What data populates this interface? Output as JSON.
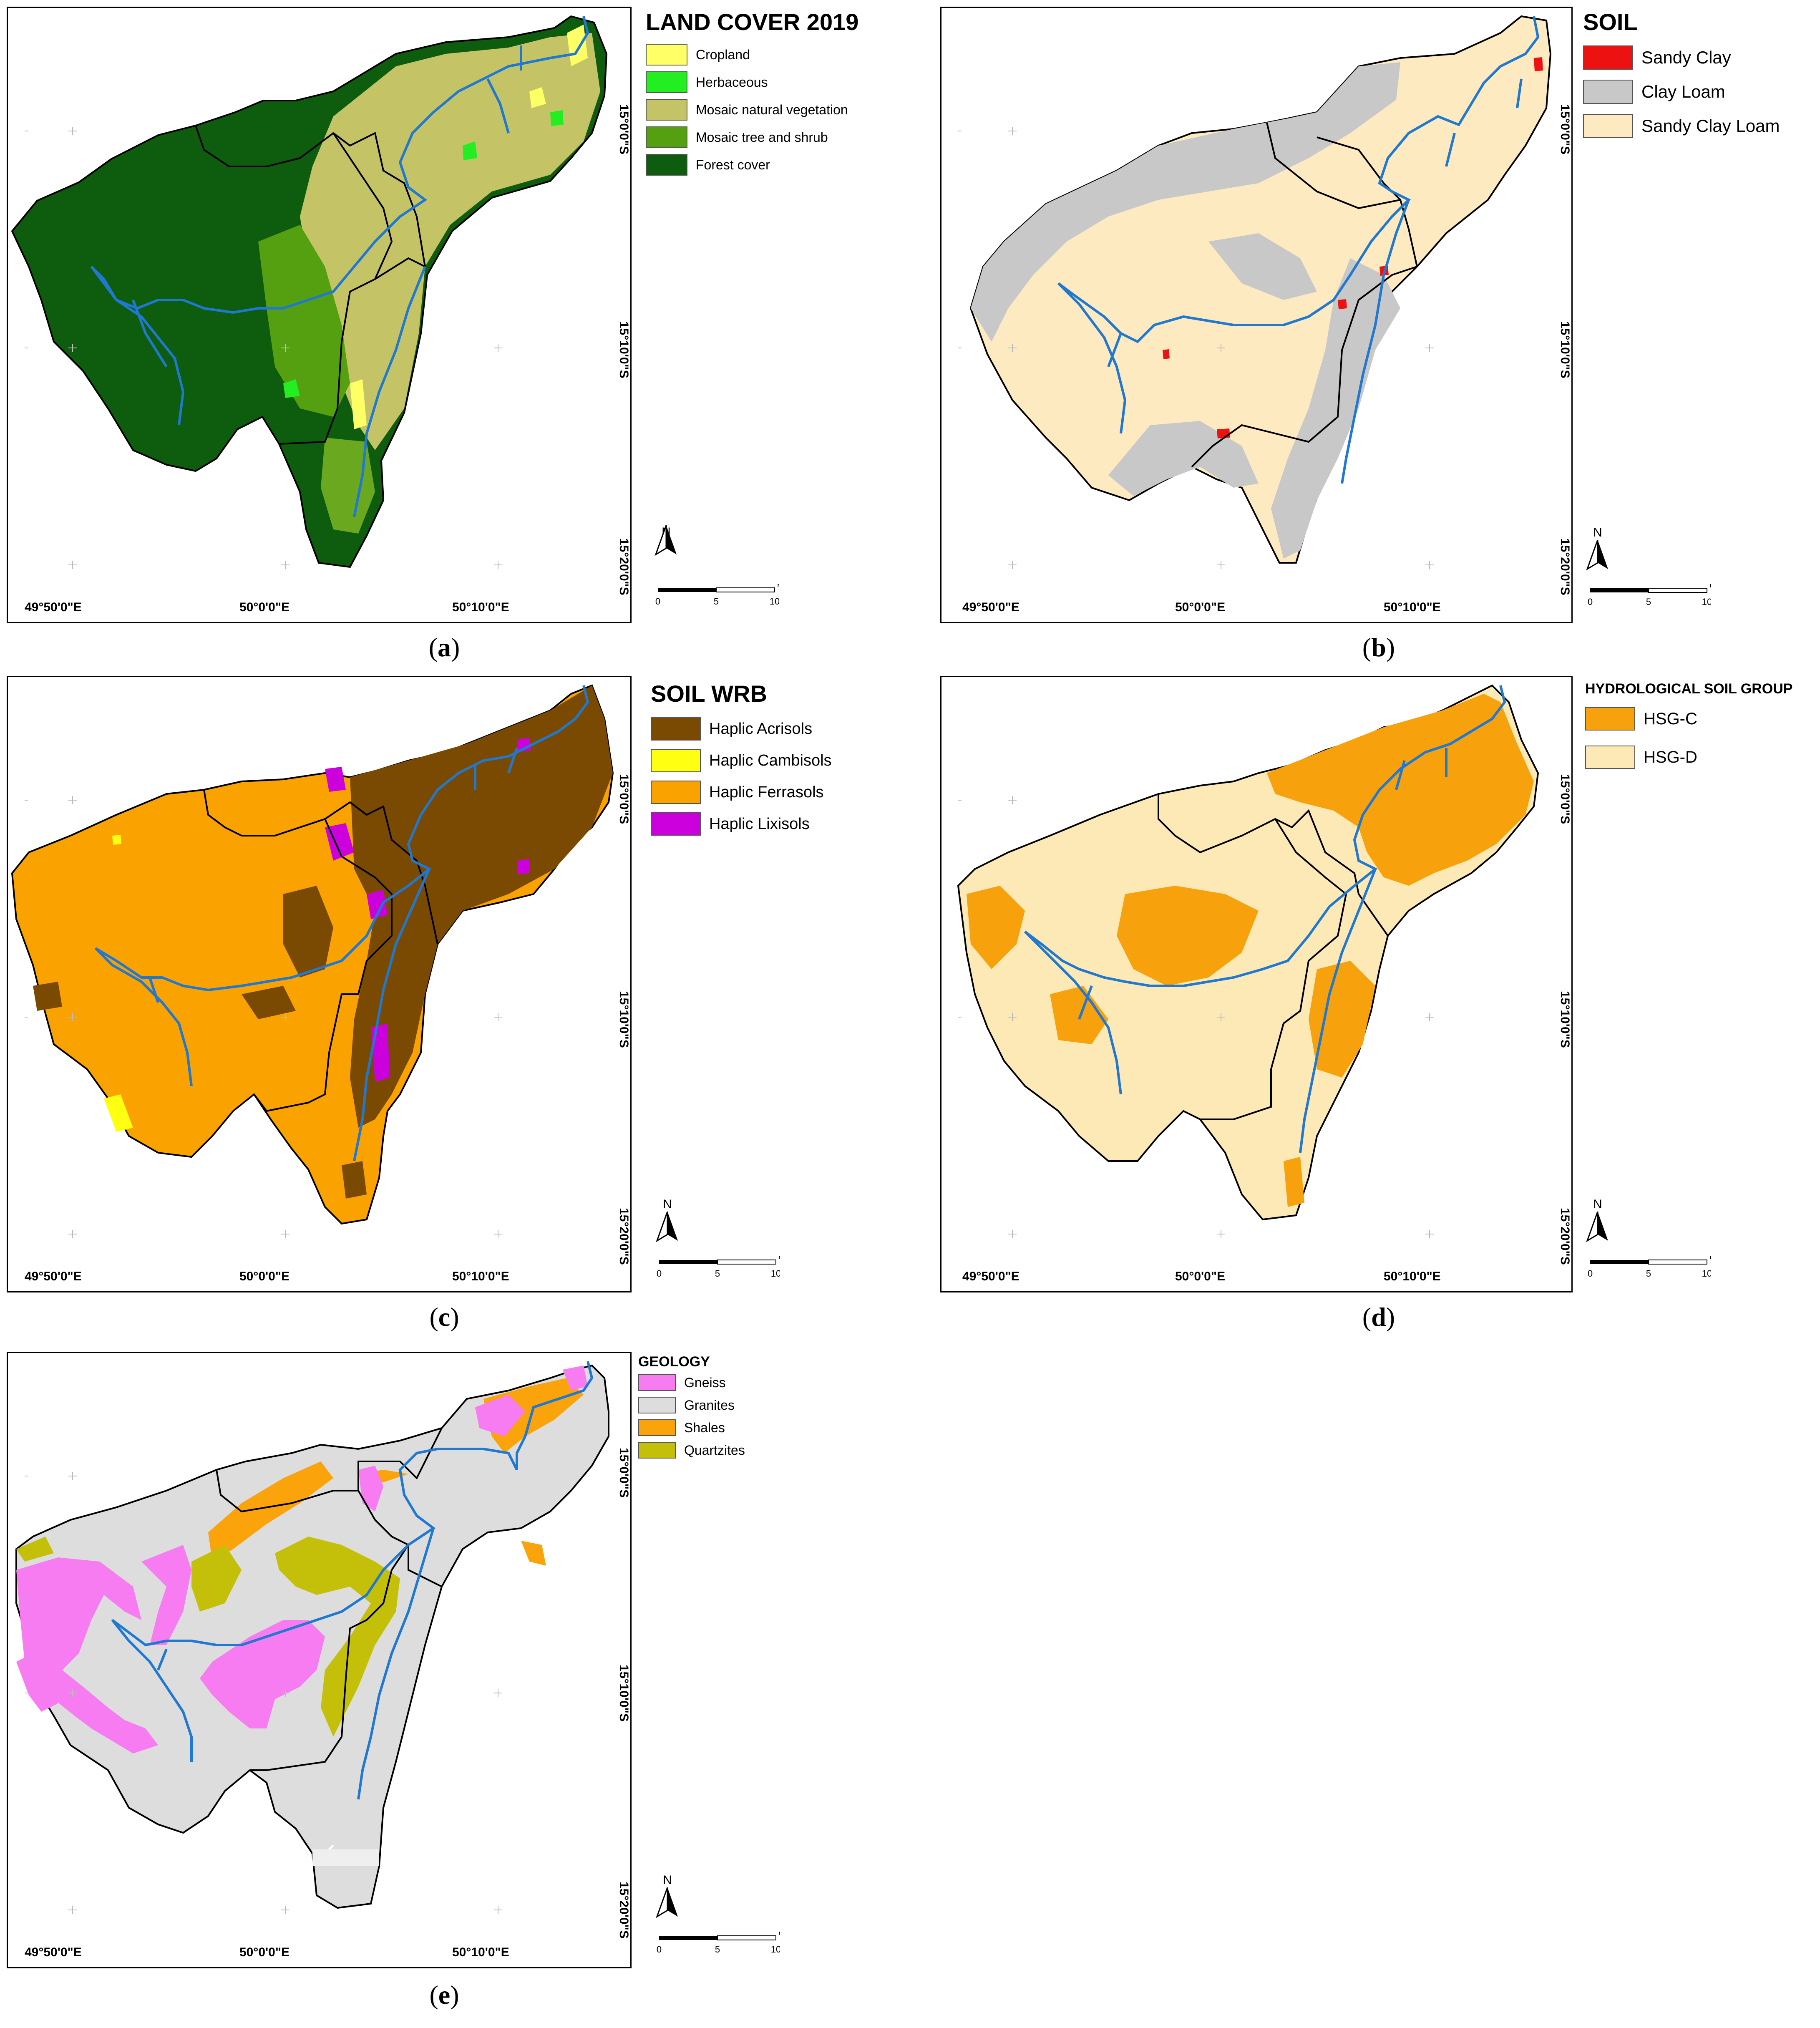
{
  "panels": [
    {
      "id": "a",
      "caption": "a",
      "legend_title": "LAND COVER 2019",
      "classes": [
        {
          "label": "Cropland",
          "color": "#ffff66"
        },
        {
          "label": "Herbaceous",
          "color": "#22ee22"
        },
        {
          "label": "Mosaic natural vegetation",
          "color": "#c4c466"
        },
        {
          "label": "Mosaic tree and shrub",
          "color": "#55a010"
        },
        {
          "label": "Forest cover",
          "color": "#0e5c0e"
        }
      ]
    },
    {
      "id": "b",
      "caption": "b",
      "legend_title": "SOIL",
      "classes": [
        {
          "label": "Sandy Clay",
          "color": "#ee1111"
        },
        {
          "label": "Clay Loam",
          "color": "#c8c8c8"
        },
        {
          "label": "Sandy Clay Loam",
          "color": "#fdeac0"
        }
      ]
    },
    {
      "id": "c",
      "caption": "c",
      "legend_title": "SOIL WRB",
      "classes": [
        {
          "label": "Haplic Acrisols",
          "color": "#7a4a02"
        },
        {
          "label": "Haplic Cambisols",
          "color": "#ffff11"
        },
        {
          "label": "Haplic Ferrasols",
          "color": "#faa200"
        },
        {
          "label": "Haplic Lixisols",
          "color": "#cc00dd"
        }
      ]
    },
    {
      "id": "d",
      "caption": "d",
      "legend_title": "HYDROLOGICAL SOIL GROUP",
      "classes": [
        {
          "label": "HSG-C",
          "color": "#f7a10d"
        },
        {
          "label": "HSG-D",
          "color": "#fde9b5"
        }
      ]
    },
    {
      "id": "e",
      "caption": "e",
      "legend_title": "GEOLOGY",
      "classes": [
        {
          "label": "Gneiss",
          "color": "#f77cf2"
        },
        {
          "label": "Granites",
          "color": "#dddddd"
        },
        {
          "label": "Shales",
          "color": "#faa30a"
        },
        {
          "label": "Quartzites",
          "color": "#c4c00a"
        }
      ]
    }
  ],
  "graticule": {
    "lon_labels": [
      "49°50'0\"E",
      "50°0'0\"E",
      "50°10'0\"E"
    ],
    "lat_labels": [
      "15°0'0\"S",
      "15°10'0\"S",
      "15°20'0\"S"
    ]
  },
  "map_furniture": {
    "north_letter": "N",
    "scale_unit": "KM",
    "scale_labels": [
      "0",
      "5",
      "10"
    ]
  },
  "style": {
    "river_color": "#1f78d1",
    "boundary_color": "#000000"
  }
}
